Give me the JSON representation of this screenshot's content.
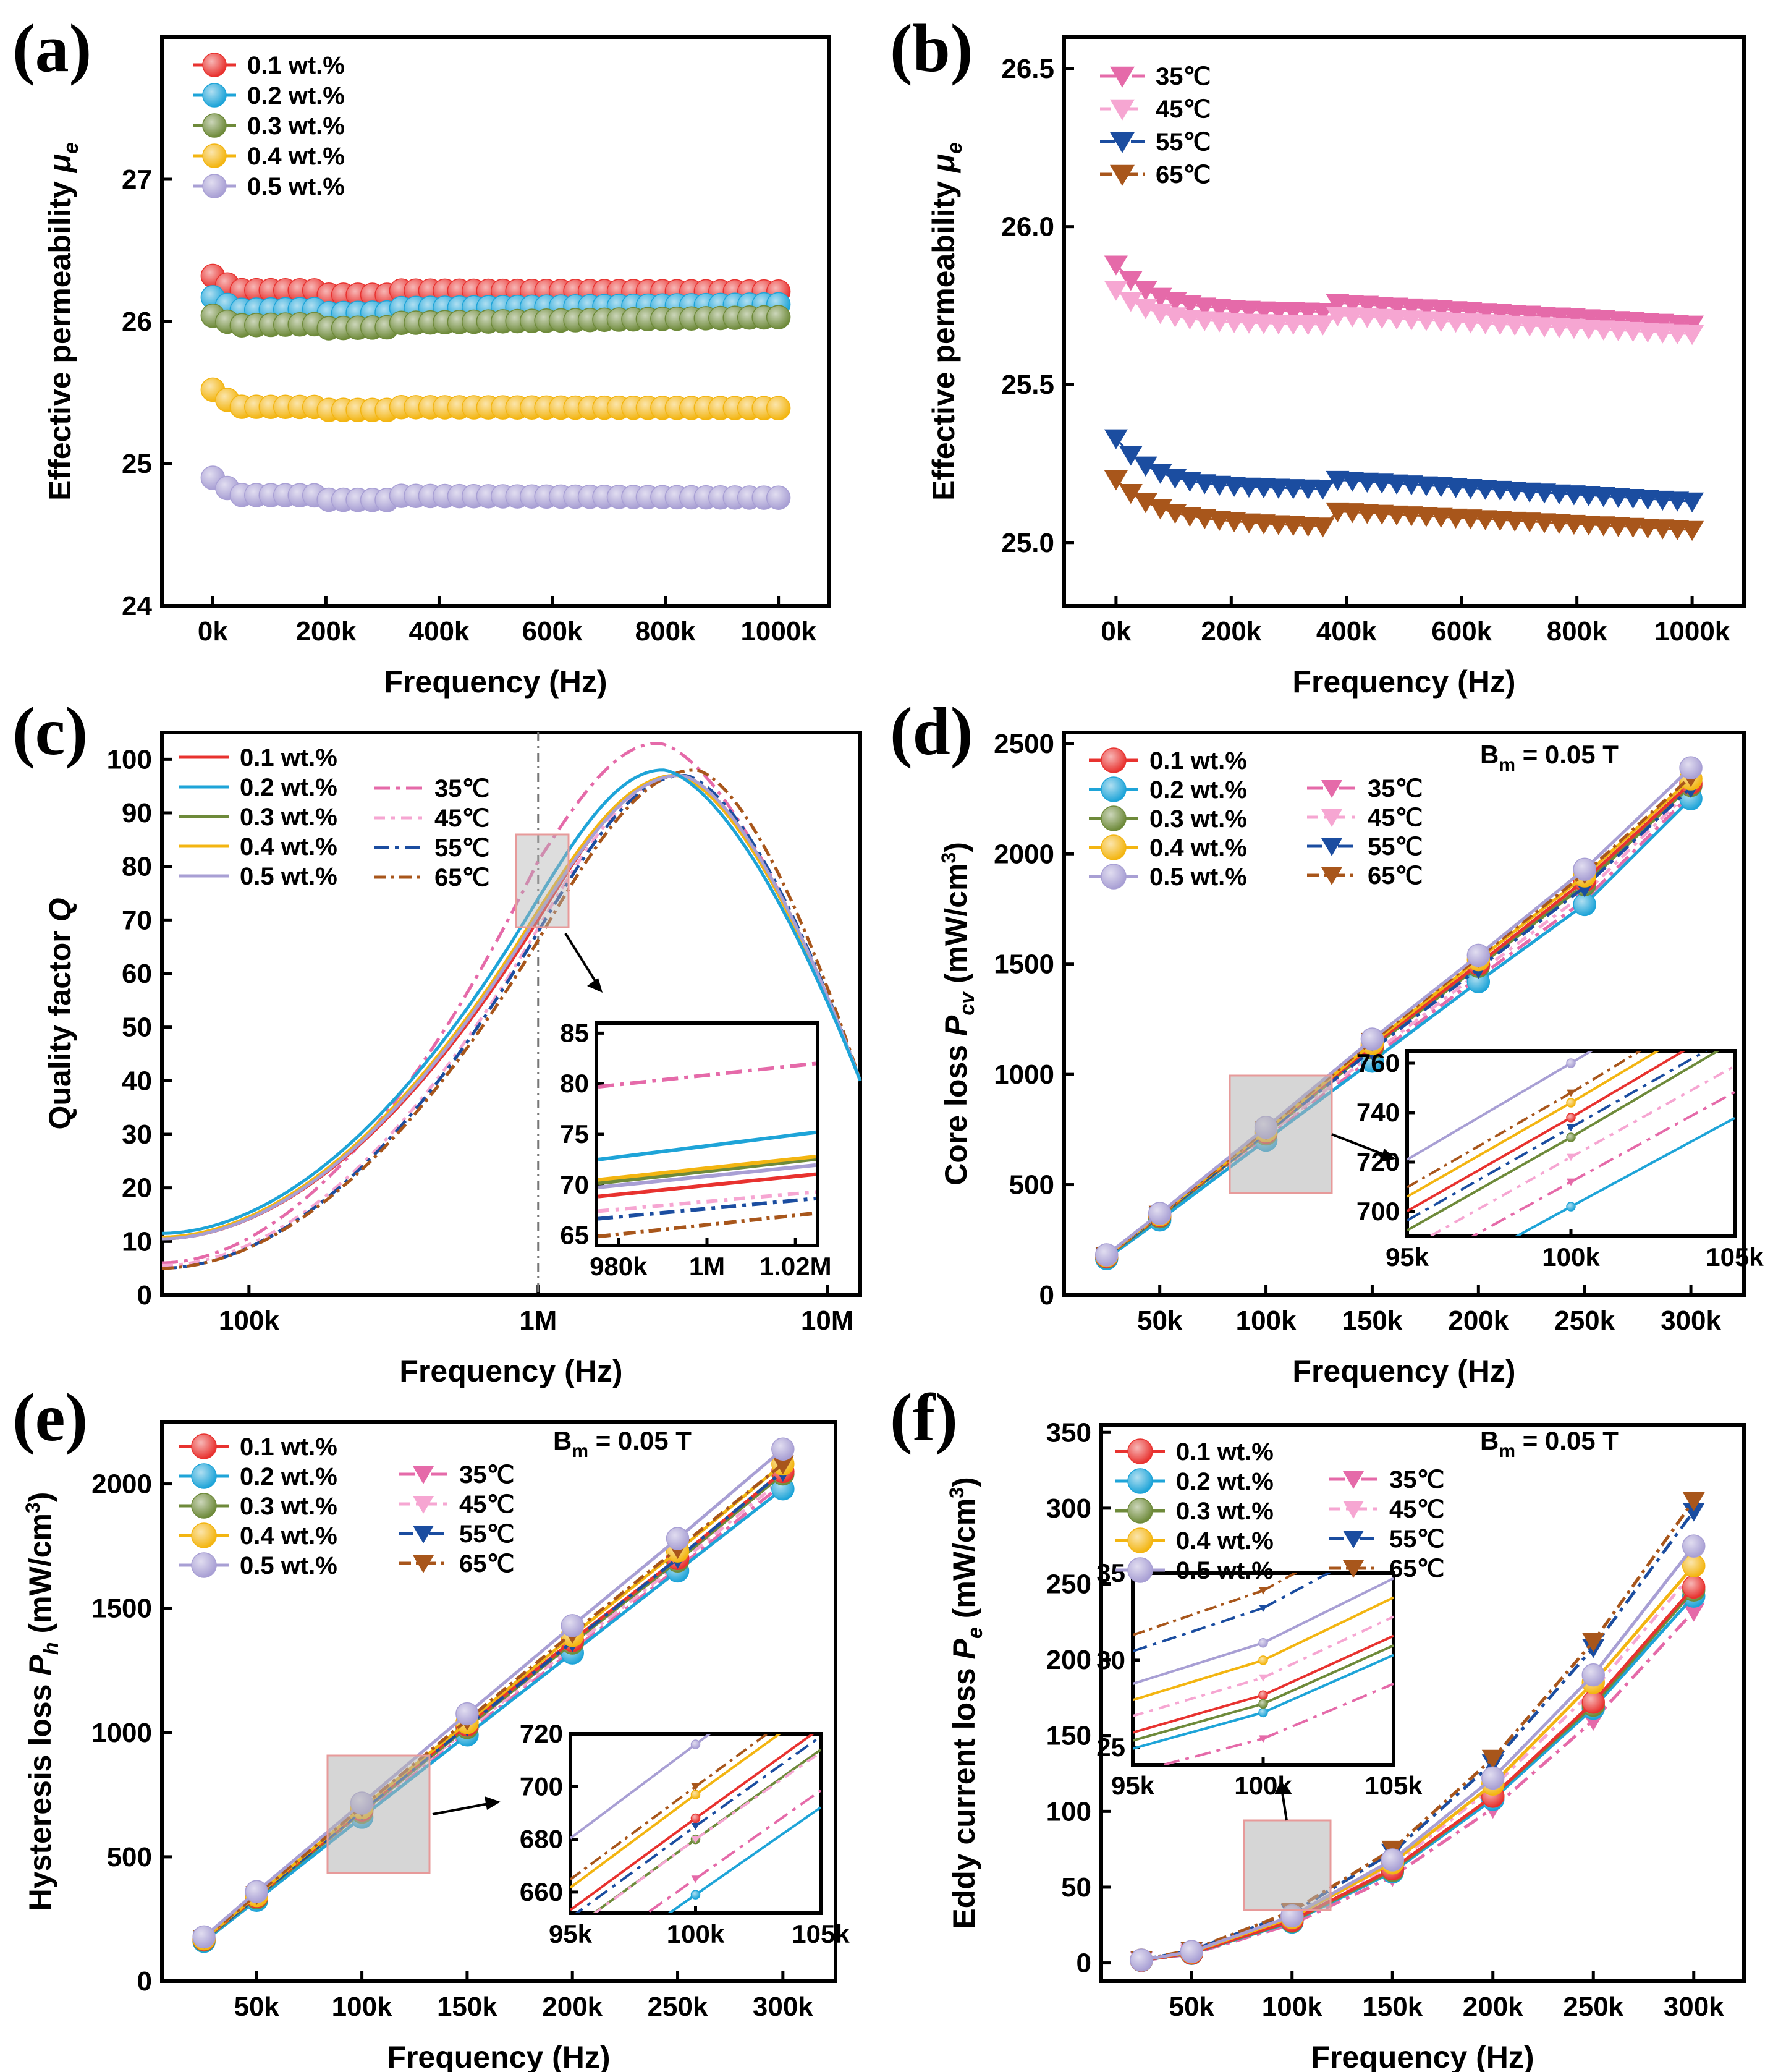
{
  "colors": {
    "0.1 wt.%": "#e8322f",
    "0.2 wt.%": "#1ea4d8",
    "0.3 wt.%": "#6e8a3a",
    "0.4 wt.%": "#f3b511",
    "0.5 wt.%": "#a89fd4",
    "35℃": "#e56aa9",
    "45℃": "#f6a6d2",
    "55℃": "#1b4da0",
    "65℃": "#a8561b"
  },
  "annotation_bm": "B",
  "annotation_bm_sub": "m",
  "annotation_bm_val": " = 0.05 T",
  "chart_data": [
    {
      "panel": "(a)",
      "type": "scatter",
      "xlabel": "Frequency (Hz)",
      "ylabel": "Effective permeability μe",
      "xlim": [
        -90000,
        1090000
      ],
      "ylim": [
        24,
        28
      ],
      "xticks": [
        "0k",
        "200k",
        "400k",
        "600k",
        "800k",
        "1000k"
      ],
      "yticks": [
        "24",
        "25",
        "26",
        "27"
      ],
      "x_count": 40,
      "series": [
        {
          "name": "0.1 wt.%",
          "start": 26.32,
          "plateau": 26.22,
          "dip": 0.03,
          "end": 26.21
        },
        {
          "name": "0.2 wt.%",
          "start": 26.17,
          "plateau": 26.08,
          "dip": 0.03,
          "end": 26.12
        },
        {
          "name": "0.3 wt.%",
          "start": 26.04,
          "plateau": 25.97,
          "dip": 0.03,
          "end": 26.03
        },
        {
          "name": "0.4 wt.%",
          "start": 25.52,
          "plateau": 25.4,
          "dip": 0.02,
          "end": 25.39
        },
        {
          "name": "0.5 wt.%",
          "start": 24.9,
          "plateau": 24.78,
          "dip": 0.03,
          "end": 24.76
        }
      ]
    },
    {
      "panel": "(b)",
      "type": "scatter",
      "xlabel": "Frequency (Hz)",
      "ylabel": "Effective permeability μe",
      "xlim": [
        -90000,
        1090000
      ],
      "ylim": [
        24.8,
        26.6
      ],
      "xticks": [
        "0k",
        "200k",
        "400k",
        "600k",
        "800k",
        "1000k"
      ],
      "yticks": [
        "25.0",
        "25.5",
        "26.0",
        "26.5"
      ],
      "x_count": 40,
      "series": [
        {
          "name": "35℃",
          "start": 25.88,
          "mid": 25.74,
          "end": 25.69
        },
        {
          "name": "45℃",
          "start": 25.8,
          "mid": 25.7,
          "end": 25.66
        },
        {
          "name": "55℃",
          "start": 25.33,
          "mid": 25.18,
          "end": 25.13
        },
        {
          "name": "65℃",
          "start": 25.2,
          "mid": 25.08,
          "end": 25.04
        }
      ]
    },
    {
      "panel": "(c)",
      "type": "line",
      "xlabel": "Frequency (Hz)",
      "ylabel": "Quality factor Q",
      "xscale": "log",
      "xlim": [
        50000,
        13000000
      ],
      "ylim": [
        0,
        105
      ],
      "xticks": [
        "100k",
        "1M",
        "10M"
      ],
      "yticks": [
        "0",
        "10",
        "20",
        "30",
        "40",
        "50",
        "60",
        "70",
        "80",
        "90",
        "100"
      ],
      "series": [
        {
          "name": "0.1 wt.%",
          "q_at_1M": 70.1,
          "peak": 97,
          "peak_f": 3000000,
          "q_low": 10.5
        },
        {
          "name": "0.2 wt.%",
          "q_at_1M": 74.0,
          "peak": 98,
          "peak_f": 2700000,
          "q_low": 11.5
        },
        {
          "name": "0.3 wt.%",
          "q_at_1M": 71.5,
          "peak": 97,
          "peak_f": 3100000,
          "q_low": 10.5
        },
        {
          "name": "0.4 wt.%",
          "q_at_1M": 71.8,
          "peak": 97,
          "peak_f": 3000000,
          "q_low": 10.8
        },
        {
          "name": "0.5 wt.%",
          "q_at_1M": 71.0,
          "peak": 97,
          "peak_f": 3100000,
          "q_low": 10.5
        },
        {
          "name": "35℃",
          "q_at_1M": 81.0,
          "peak": 103,
          "peak_f": 2600000,
          "q_low": 6.0
        },
        {
          "name": "45℃",
          "q_at_1M": 68.5,
          "peak": 97,
          "peak_f": 3100000,
          "q_low": 5.5
        },
        {
          "name": "55℃",
          "q_at_1M": 67.8,
          "peak": 97,
          "peak_f": 3200000,
          "q_low": 5.0
        },
        {
          "name": "65℃",
          "q_at_1M": 66.2,
          "peak": 98,
          "peak_f": 3500000,
          "q_low": 5.0
        }
      ],
      "inset": {
        "xlim": [
          975000,
          1025000
        ],
        "ylim": [
          64,
          86
        ],
        "xticks": [
          "980k",
          "1M",
          "1.02M"
        ],
        "yticks": [
          "65",
          "70",
          "75",
          "80",
          "85"
        ]
      }
    },
    {
      "panel": "(d)",
      "type": "line",
      "xlabel": "Frequency (Hz)",
      "ylabel": "Core loss Pcv (mW/cm3)",
      "x": [
        25000,
        50000,
        100000,
        150000,
        200000,
        250000,
        300000
      ],
      "xlim": [
        5000,
        325000
      ],
      "ylim": [
        0,
        2550
      ],
      "xticks": [
        "50k",
        "100k",
        "150k",
        "200k",
        "250k",
        "300k"
      ],
      "yticks": [
        "0",
        "500",
        "1000",
        "1500",
        "2000",
        "2500"
      ],
      "series": [
        {
          "name": "0.1 wt.%",
          "values": [
            175,
            360,
            738,
            1130,
            1500,
            1880,
            2320
          ]
        },
        {
          "name": "0.2 wt.%",
          "values": [
            165,
            340,
            702,
            1060,
            1420,
            1770,
            2250
          ]
        },
        {
          "name": "0.3 wt.%",
          "values": [
            172,
            354,
            730,
            1120,
            1490,
            1860,
            2310
          ]
        },
        {
          "name": "0.4 wt.%",
          "values": [
            178,
            364,
            744,
            1140,
            1520,
            1900,
            2340
          ]
        },
        {
          "name": "0.5 wt.%",
          "values": [
            182,
            370,
            760,
            1160,
            1540,
            1930,
            2390
          ]
        },
        {
          "name": "35℃",
          "values": [
            168,
            345,
            712,
            1075,
            1440,
            1790,
            2270
          ]
        },
        {
          "name": "45℃",
          "values": [
            170,
            350,
            722,
            1090,
            1460,
            1820,
            2290
          ]
        },
        {
          "name": "55℃",
          "values": [
            176,
            358,
            734,
            1110,
            1480,
            1850,
            2300
          ]
        },
        {
          "name": "65℃",
          "values": [
            180,
            366,
            748,
            1150,
            1530,
            1910,
            2350
          ]
        }
      ],
      "inset": {
        "xlim": [
          95000,
          105000
        ],
        "ylim": [
          690,
          765
        ],
        "xticks": [
          "95k",
          "100k",
          "105k"
        ],
        "yticks": [
          "700",
          "720",
          "740",
          "760"
        ]
      }
    },
    {
      "panel": "(e)",
      "type": "line",
      "xlabel": "Frequency (Hz)",
      "ylabel": "Hysteresis loss Ph (mW/cm3)",
      "x": [
        25000,
        50000,
        100000,
        150000,
        200000,
        250000,
        300000
      ],
      "xlim": [
        5000,
        325000
      ],
      "ylim": [
        0,
        2250
      ],
      "xticks": [
        "50k",
        "100k",
        "150k",
        "200k",
        "250k",
        "300k"
      ],
      "yticks": [
        "0",
        "500",
        "1000",
        "1500",
        "2000"
      ],
      "series": [
        {
          "name": "0.1 wt.%",
          "values": [
            168,
            340,
            688,
            1030,
            1370,
            1700,
            2050
          ]
        },
        {
          "name": "0.2 wt.%",
          "values": [
            160,
            325,
            659,
            990,
            1320,
            1650,
            1980
          ]
        },
        {
          "name": "0.3 wt.%",
          "values": [
            165,
            335,
            680,
            1020,
            1360,
            1690,
            2040
          ]
        },
        {
          "name": "0.4 wt.%",
          "values": [
            170,
            344,
            697,
            1040,
            1390,
            1730,
            2080
          ]
        },
        {
          "name": "0.5 wt.%",
          "values": [
            178,
            360,
            716,
            1075,
            1430,
            1780,
            2140
          ]
        },
        {
          "name": "35℃",
          "values": [
            162,
            330,
            665,
            1000,
            1330,
            1660,
            2000
          ]
        },
        {
          "name": "45℃",
          "values": [
            164,
            332,
            680,
            1010,
            1345,
            1675,
            2020
          ]
        },
        {
          "name": "55℃",
          "values": [
            166,
            338,
            685,
            1025,
            1365,
            1700,
            2050
          ]
        },
        {
          "name": "65℃",
          "values": [
            172,
            348,
            700,
            1050,
            1400,
            1740,
            2080
          ]
        }
      ],
      "inset": {
        "xlim": [
          95000,
          105000
        ],
        "ylim": [
          652,
          720
        ],
        "xticks": [
          "95k",
          "100k",
          "105k"
        ],
        "yticks": [
          "660",
          "680",
          "700",
          "720"
        ]
      }
    },
    {
      "panel": "(f)",
      "type": "line",
      "xlabel": "Frequency (Hz)",
      "ylabel": "Eddy current loss Pe (mW/cm3)",
      "x": [
        25000,
        50000,
        100000,
        150000,
        200000,
        250000,
        300000
      ],
      "xlim": [
        5000,
        325000
      ],
      "ylim": [
        -12,
        355
      ],
      "xticks": [
        "50k",
        "100k",
        "150k",
        "200k",
        "250k",
        "300k"
      ],
      "yticks": [
        "0",
        "50",
        "100",
        "150",
        "200",
        "250",
        "300",
        "350"
      ],
      "series": [
        {
          "name": "0.1 wt.%",
          "values": [
            1.7,
            6.5,
            28,
            62,
            110,
            172,
            248
          ]
        },
        {
          "name": "0.2 wt.%",
          "values": [
            1.6,
            6.3,
            27,
            60,
            108,
            168,
            242
          ]
        },
        {
          "name": "0.3 wt.%",
          "values": [
            1.7,
            6.4,
            27.5,
            61,
            110,
            170,
            246
          ]
        },
        {
          "name": "0.4 wt.%",
          "values": [
            1.9,
            7.2,
            30,
            66,
            118,
            185,
            262
          ]
        },
        {
          "name": "0.5 wt.%",
          "values": [
            1.9,
            7.5,
            31,
            68,
            122,
            190,
            275
          ]
        },
        {
          "name": "35℃",
          "values": [
            1.5,
            5.9,
            25.5,
            57,
            102,
            160,
            232
          ]
        },
        {
          "name": "45℃",
          "values": [
            1.8,
            7.0,
            29,
            64,
            116,
            180,
            258
          ]
        },
        {
          "name": "55℃",
          "values": [
            2.2,
            8.2,
            33,
            73,
            132,
            208,
            298
          ]
        },
        {
          "name": "65℃",
          "values": [
            2.3,
            8.5,
            34,
            75,
            135,
            212,
            305
          ]
        }
      ],
      "inset": {
        "xlim": [
          95000,
          105000
        ],
        "ylim": [
          24,
          35
        ],
        "xticks": [
          "95k",
          "100k",
          "105k"
        ],
        "yticks": [
          "25",
          "30",
          "35"
        ]
      }
    }
  ]
}
